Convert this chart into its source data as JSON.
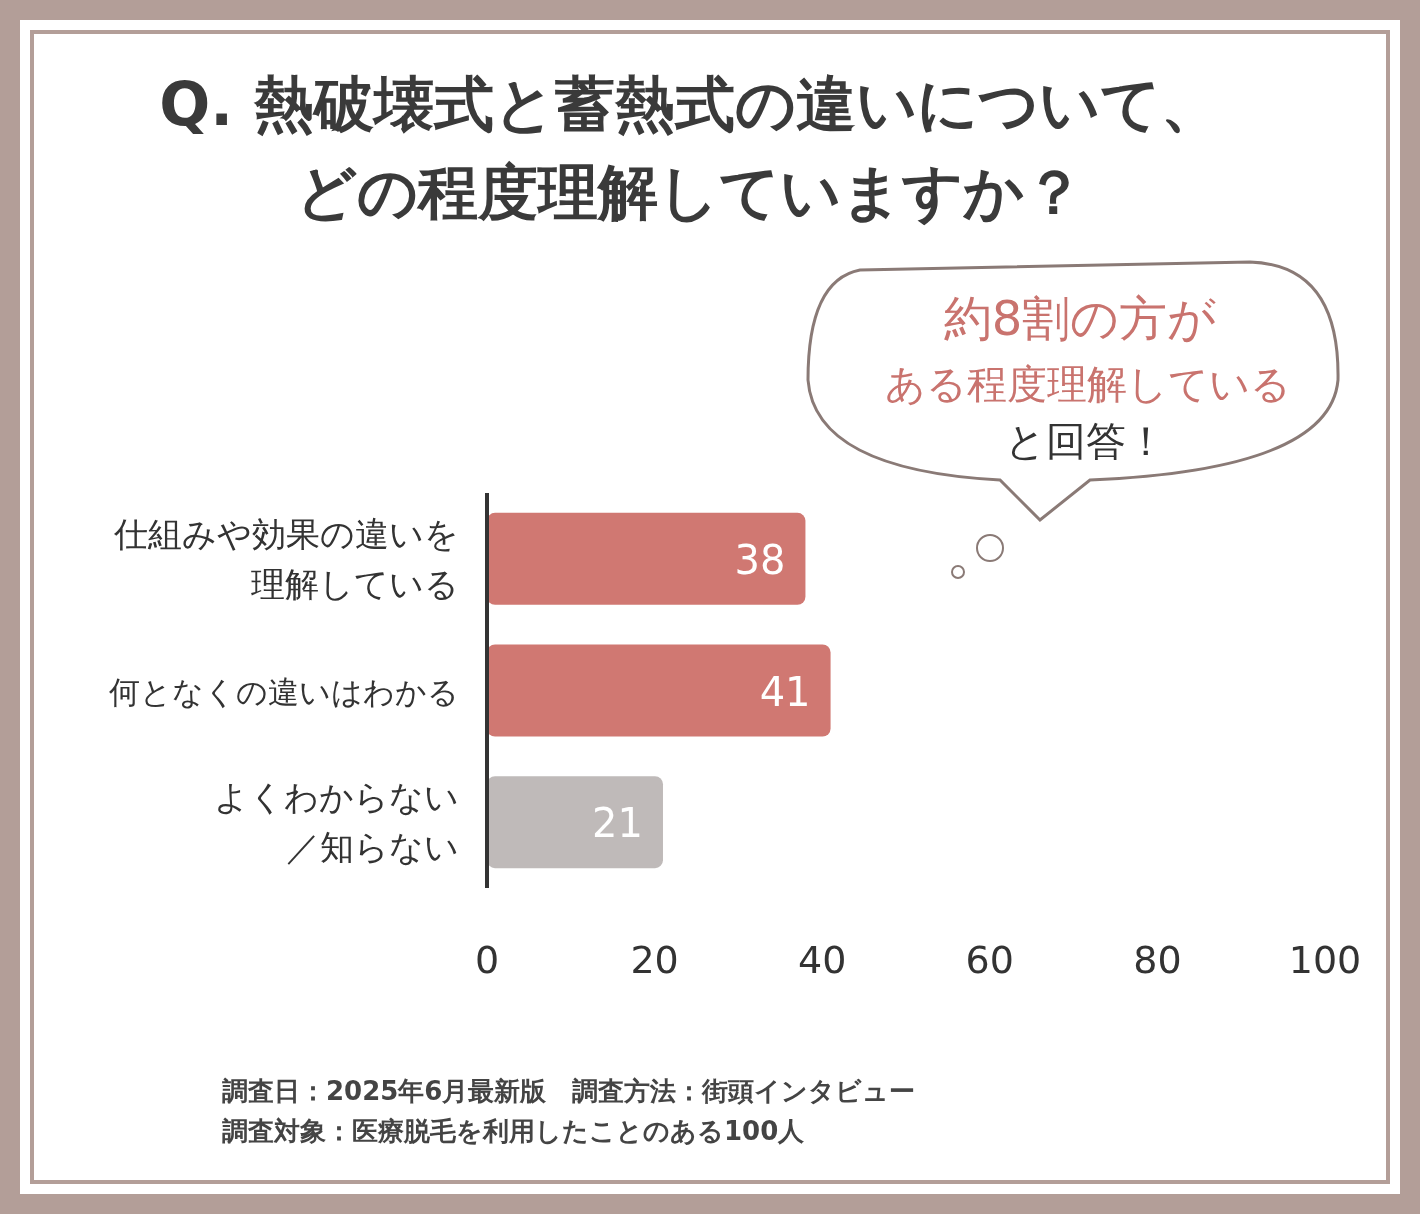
{
  "chart_data": {
    "type": "bar",
    "orientation": "horizontal",
    "title": "Q. 熱破壊式と蓄熱式の違いについて、どの程度理解していますか？",
    "categories": [
      "仕組みや効果の違いを理解している",
      "何となくの違いはわかる",
      "よくわからない／知らない"
    ],
    "values": [
      38,
      41,
      21
    ],
    "colors": [
      "#d07872",
      "#d07872",
      "#bfbab9"
    ],
    "xlim": [
      0,
      100
    ],
    "xticks": [
      0,
      20,
      40,
      60,
      80,
      100
    ],
    "data_labels": true,
    "grid": false,
    "annotations": [
      "約8割の方が",
      "ある程度理解している",
      "と回答！",
      "調査日：2025年6月最新版　調査方法：街頭インタビュー",
      "調査対象：医療脱毛を利用したことのある100人"
    ]
  }
}
